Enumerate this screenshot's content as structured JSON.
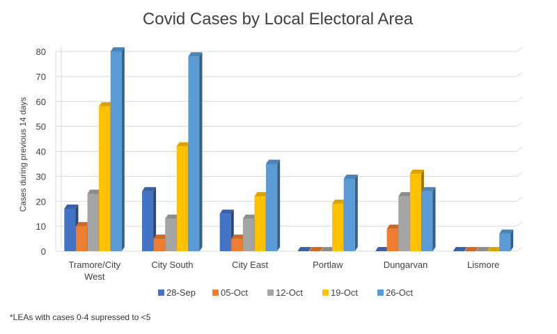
{
  "chart_data": {
    "type": "bar",
    "title": "Covid Cases by Local Electoral Area",
    "xlabel": "",
    "ylabel": "Cases during previous 14 days",
    "ylim": [
      0,
      80
    ],
    "yticks": [
      0,
      10,
      20,
      30,
      40,
      50,
      60,
      70,
      80
    ],
    "categories": [
      [
        "Tramore/City",
        "West"
      ],
      [
        "City South"
      ],
      [
        "City East"
      ],
      [
        "Portlaw"
      ],
      [
        "Dungarvan"
      ],
      [
        "Lismore"
      ]
    ],
    "series": [
      {
        "name": "28-Sep",
        "color": "#4472c4",
        "values": [
          17,
          24,
          15,
          0,
          0,
          0
        ]
      },
      {
        "name": "05-Oct",
        "color": "#ed7d31",
        "values": [
          10,
          5,
          5,
          0,
          9,
          0
        ]
      },
      {
        "name": "12-Oct",
        "color": "#a5a5a5",
        "values": [
          23,
          13,
          13,
          0,
          22,
          0
        ]
      },
      {
        "name": "19-Oct",
        "color": "#ffc000",
        "values": [
          58,
          42,
          22,
          19,
          31,
          0
        ]
      },
      {
        "name": "26-Oct",
        "color": "#5b9bd5",
        "values": [
          80,
          78,
          35,
          29,
          24,
          7
        ]
      }
    ],
    "grid": true,
    "legend": "bottom"
  },
  "footnote": "*LEAs with cases 0-4 supressed to <5"
}
